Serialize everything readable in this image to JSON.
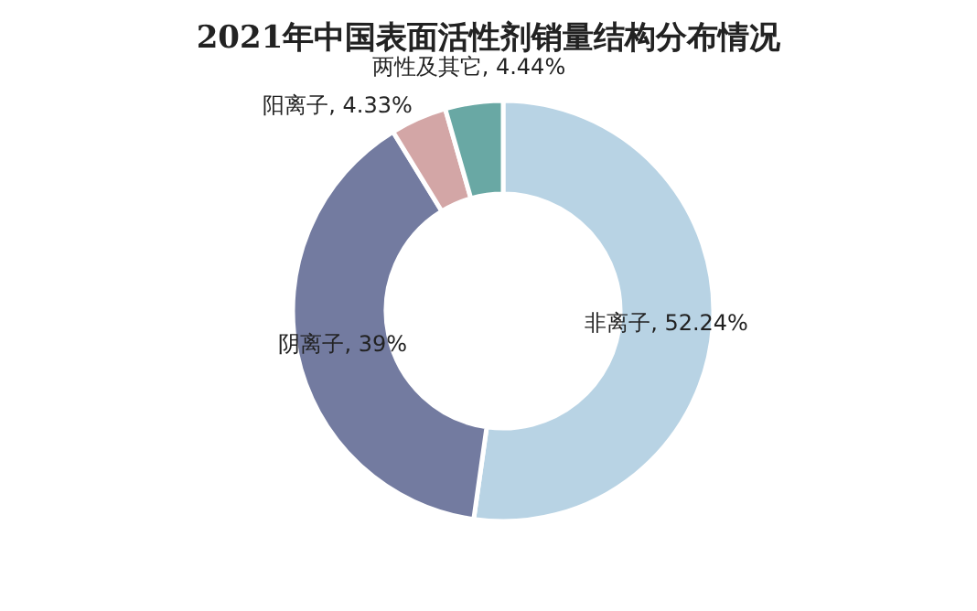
{
  "chart_data": {
    "type": "donut",
    "title": "2021年中国表面活性剂销量结构分布情况",
    "categories": [
      "非离子",
      "阴离子",
      "阳离子",
      "两性及其它"
    ],
    "values": [
      52.24,
      39,
      4.33,
      4.44
    ],
    "value_labels": [
      "52.24%",
      "39%",
      "4.33%",
      "4.44%"
    ],
    "colors": [
      "#b8d3e4",
      "#737ba0",
      "#d3a6a6",
      "#69a8a4"
    ],
    "legend": false
  }
}
